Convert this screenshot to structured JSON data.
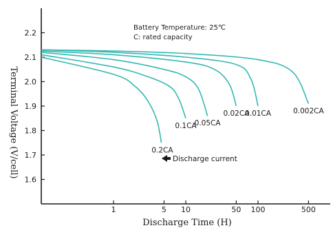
{
  "chart_data": {
    "type": "line",
    "xlabel": "Discharge Time (H)",
    "ylabel": "Terminal Voltage (V/cell)",
    "x_scale": "log",
    "xlim": [
      0.1,
      1000
    ],
    "ylim": [
      1.5,
      2.3
    ],
    "x_ticks": [
      "1",
      "5",
      "10",
      "50",
      "100",
      "500"
    ],
    "y_ticks": [
      "1.6",
      "1.7",
      "1.8",
      "1.9",
      "2.0",
      "2.1",
      "2.2"
    ],
    "annotations": [
      "Battery Temperature: 25℃",
      "C: rated capacity"
    ],
    "arrow_label": "Discharge current",
    "series": [
      {
        "name": "0.2CA",
        "points": [
          [
            0.1,
            2.1
          ],
          [
            1,
            2.03
          ],
          [
            2,
            1.98
          ],
          [
            3,
            1.92
          ],
          [
            4,
            1.84
          ],
          [
            4.6,
            1.75
          ]
        ]
      },
      {
        "name": "0.1CA",
        "points": [
          [
            0.1,
            2.11
          ],
          [
            1,
            2.06
          ],
          [
            3,
            2.02
          ],
          [
            6,
            1.98
          ],
          [
            8,
            1.93
          ],
          [
            10,
            1.85
          ]
        ]
      },
      {
        "name": "0.05CA",
        "points": [
          [
            0.1,
            2.12
          ],
          [
            1,
            2.09
          ],
          [
            5,
            2.05
          ],
          [
            10,
            2.02
          ],
          [
            15,
            1.97
          ],
          [
            20,
            1.86
          ]
        ]
      },
      {
        "name": "0.02CA",
        "points": [
          [
            0.1,
            2.125
          ],
          [
            1,
            2.11
          ],
          [
            10,
            2.08
          ],
          [
            25,
            2.05
          ],
          [
            40,
            1.99
          ],
          [
            50,
            1.9
          ]
        ]
      },
      {
        "name": "0.01CA",
        "points": [
          [
            0.1,
            2.13
          ],
          [
            1,
            2.12
          ],
          [
            10,
            2.1
          ],
          [
            50,
            2.07
          ],
          [
            80,
            2.01
          ],
          [
            100,
            1.9
          ]
        ]
      },
      {
        "name": "0.002CA",
        "points": [
          [
            0.1,
            2.13
          ],
          [
            1,
            2.125
          ],
          [
            10,
            2.115
          ],
          [
            100,
            2.09
          ],
          [
            300,
            2.04
          ],
          [
            500,
            1.91
          ]
        ]
      }
    ]
  }
}
